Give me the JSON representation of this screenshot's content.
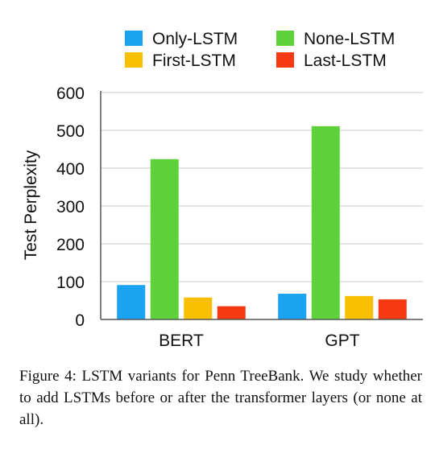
{
  "chart_data": {
    "type": "bar",
    "ylabel": "Test Perplexity",
    "xlabel": "",
    "ylim": [
      0,
      600
    ],
    "yticks": [
      0,
      100,
      200,
      300,
      400,
      500,
      600
    ],
    "grid": true,
    "legend_position": "top",
    "categories": [
      "BERT",
      "GPT"
    ],
    "series": [
      {
        "name": "Only-LSTM",
        "color": "#1aa3f0",
        "values": [
          91,
          68
        ]
      },
      {
        "name": "None-LSTM",
        "color": "#5fd13b",
        "values": [
          424,
          511
        ]
      },
      {
        "name": "First-LSTM",
        "color": "#f8c000",
        "values": [
          58,
          62
        ]
      },
      {
        "name": "Last-LSTM",
        "color": "#f53a12",
        "values": [
          35,
          53
        ]
      }
    ],
    "legend_order": [
      "Only-LSTM",
      "None-LSTM",
      "First-LSTM",
      "Last-LSTM"
    ]
  },
  "caption": {
    "text": "Figure 4: LSTM variants for Penn TreeBank. We study whether to add LSTMs before or after the transformer layers (or none at all)."
  }
}
